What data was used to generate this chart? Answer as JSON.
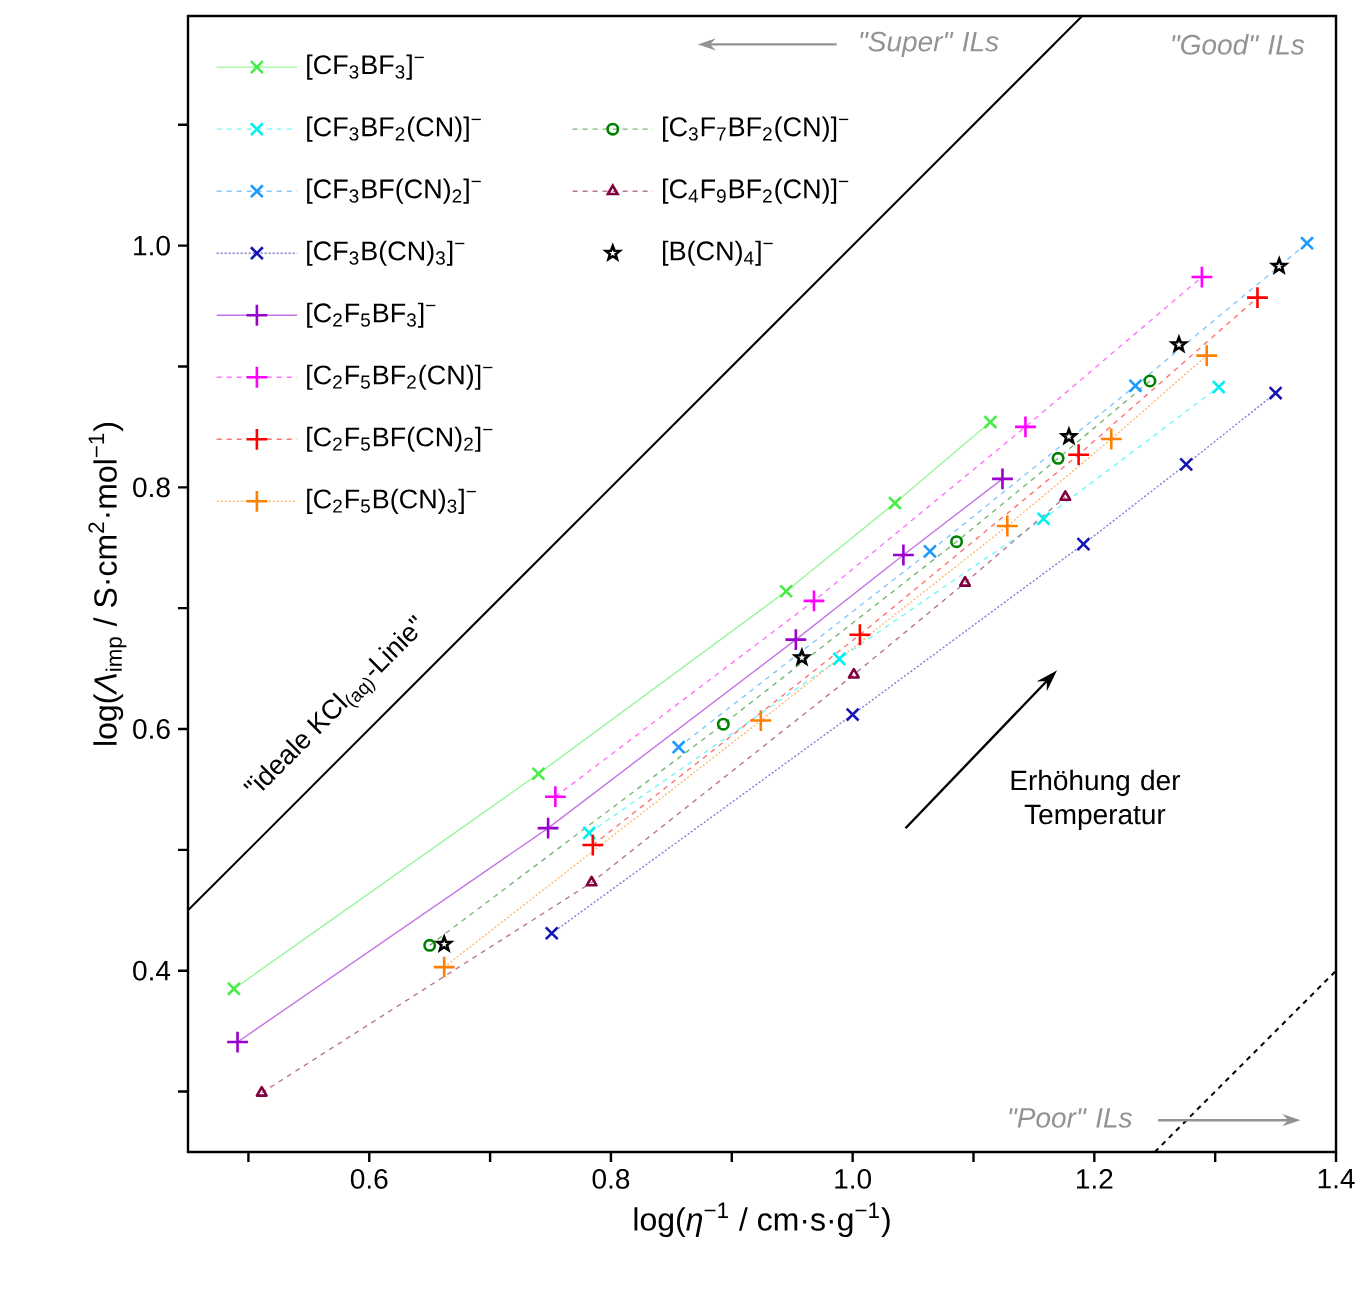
{
  "chart_data": {
    "type": "line",
    "xlabel": "log(*η*$^{−1}$ / cm·s·g$^{−1}$)",
    "ylabel": "log(*Λ*$_{imp}$ / S·cm$^{2}$·mol$^{−1}$)",
    "xlim": [
      0.45,
      1.4
    ],
    "ylim": [
      0.25,
      1.19
    ],
    "xticks": [
      {
        "value": 0.5,
        "label": null
      },
      0.6,
      {
        "value": 0.7,
        "label": null
      },
      0.8,
      {
        "value": 0.9,
        "label": null
      },
      {
        "value": 1.0,
        "label": "1.0"
      },
      {
        "value": 1.1,
        "label": null
      },
      1.2,
      {
        "value": 1.3,
        "label": null
      },
      1.4
    ],
    "yticks": [
      {
        "value": 0.3,
        "label": null
      },
      0.4,
      {
        "value": 0.5,
        "label": null
      },
      0.6,
      {
        "value": 0.7,
        "label": null
      },
      0.8,
      {
        "value": 0.9,
        "label": null
      },
      {
        "value": 1.0,
        "label": "1.0"
      },
      {
        "value": 1.1,
        "label": null
      }
    ],
    "legend": "top left",
    "series": [
      {
        "name": "[CF$_{3}$BF$_{3}$]$^{−}$",
        "color": "#44ee44",
        "marker": "cross",
        "line_style": "solid",
        "x": [
          0.488,
          0.74,
          0.945,
          1.035,
          1.114
        ],
        "values": [
          0.385,
          0.563,
          0.714,
          0.787,
          0.854
        ]
      },
      {
        "name": "[CF$_{3}$BF$_{2}$(CN)]$^{−}$",
        "color": "#00f0f0",
        "marker": "cross",
        "line_style": "dashed",
        "x": [
          0.782,
          0.989,
          1.158,
          1.303
        ],
        "values": [
          0.514,
          0.658,
          0.774,
          0.883
        ]
      },
      {
        "name": "[CF$_{3}$BF(CN)$_{2}$]$^{−}$",
        "color": "#1e9bff",
        "marker": "cross",
        "line_style": "dashed",
        "x": [
          0.856,
          1.064,
          1.234,
          1.376
        ],
        "values": [
          0.585,
          0.747,
          0.884,
          1.002
        ]
      },
      {
        "name": "[CF$_{3}$B(CN)$_{3}$]$^{−}$",
        "color": "#1414b4",
        "marker": "cross",
        "line_style": "dotted",
        "x": [
          0.751,
          1.0,
          1.191,
          1.276,
          1.35
        ],
        "values": [
          0.431,
          0.612,
          0.753,
          0.819,
          0.878
        ]
      },
      {
        "name": "[C$_{2}$F$_{5}$BF$_{3}$]$^{−}$",
        "color": "#9900cc",
        "marker": "plus",
        "line_style": "solid",
        "x": [
          0.491,
          0.748,
          0.953,
          1.042,
          1.124
        ],
        "values": [
          0.341,
          0.518,
          0.674,
          0.744,
          0.807
        ]
      },
      {
        "name": "[C$_{2}$F$_{5}$BF$_{2}$(CN)]$^{−}$",
        "color": "#ff00ff",
        "marker": "plus",
        "line_style": "dashed",
        "x": [
          0.754,
          0.968,
          1.143,
          1.289
        ],
        "values": [
          0.544,
          0.706,
          0.85,
          0.974
        ]
      },
      {
        "name": "[C$_{2}$F$_{5}$BF(CN)$_{2}$]$^{−}$",
        "color": "#ff0000",
        "marker": "plus",
        "line_style": "dashed",
        "x": [
          0.785,
          1.006,
          1.187,
          1.335
        ],
        "values": [
          0.504,
          0.678,
          0.827,
          0.957
        ]
      },
      {
        "name": "[C$_{2}$F$_{5}$B(CN)$_{3}$]$^{−}$",
        "color": "#ff8000",
        "marker": "plus",
        "line_style": "dotted",
        "x": [
          0.662,
          0.924,
          1.128,
          1.214,
          1.293
        ],
        "values": [
          0.403,
          0.607,
          0.768,
          0.84,
          0.909
        ]
      },
      {
        "name": "[C$_{3}$F$_{7}$BF$_{2}$(CN)]$^{−}$",
        "color": "#008000",
        "marker": "circle",
        "line_style": "dashed",
        "x": [
          0.65,
          0.893,
          1.086,
          1.17,
          1.246
        ],
        "values": [
          0.421,
          0.604,
          0.755,
          0.824,
          0.888
        ]
      },
      {
        "name": "[C$_{4}$F$_{9}$BF$_{2}$(CN)]$^{−}$",
        "color": "#800040",
        "marker": "triangle",
        "line_style": "dashed",
        "x": [
          0.511,
          0.784,
          1.001,
          1.093,
          1.176
        ],
        "values": [
          0.299,
          0.473,
          0.645,
          0.721,
          0.792
        ]
      },
      {
        "name": "[B(CN)$_{4}$]$^{−}$",
        "type": "scatter",
        "color": "#000000",
        "marker": "star",
        "x": [
          0.662,
          0.958,
          1.179,
          1.27,
          1.353
        ],
        "values": [
          0.422,
          0.659,
          0.842,
          0.918,
          0.983
        ]
      },
      {
        "color": "#000000",
        "line_style": "solid",
        "x": [
          0.45,
          1.19
        ],
        "values": [
          0.45,
          1.19
        ]
      },
      {
        "color": "#000000",
        "line_style": "dashed",
        "x": [
          1.25,
          1.4
        ],
        "values": [
          0.25,
          0.4
        ]
      }
    ],
    "annotations": [
      "\"Super\" ILs",
      "\"Good\" ILs",
      "\"Poor\" ILs",
      "Erhöhung der Temperatur",
      "\"ideale KCl$_{(aq)}$-Linie\""
    ]
  }
}
